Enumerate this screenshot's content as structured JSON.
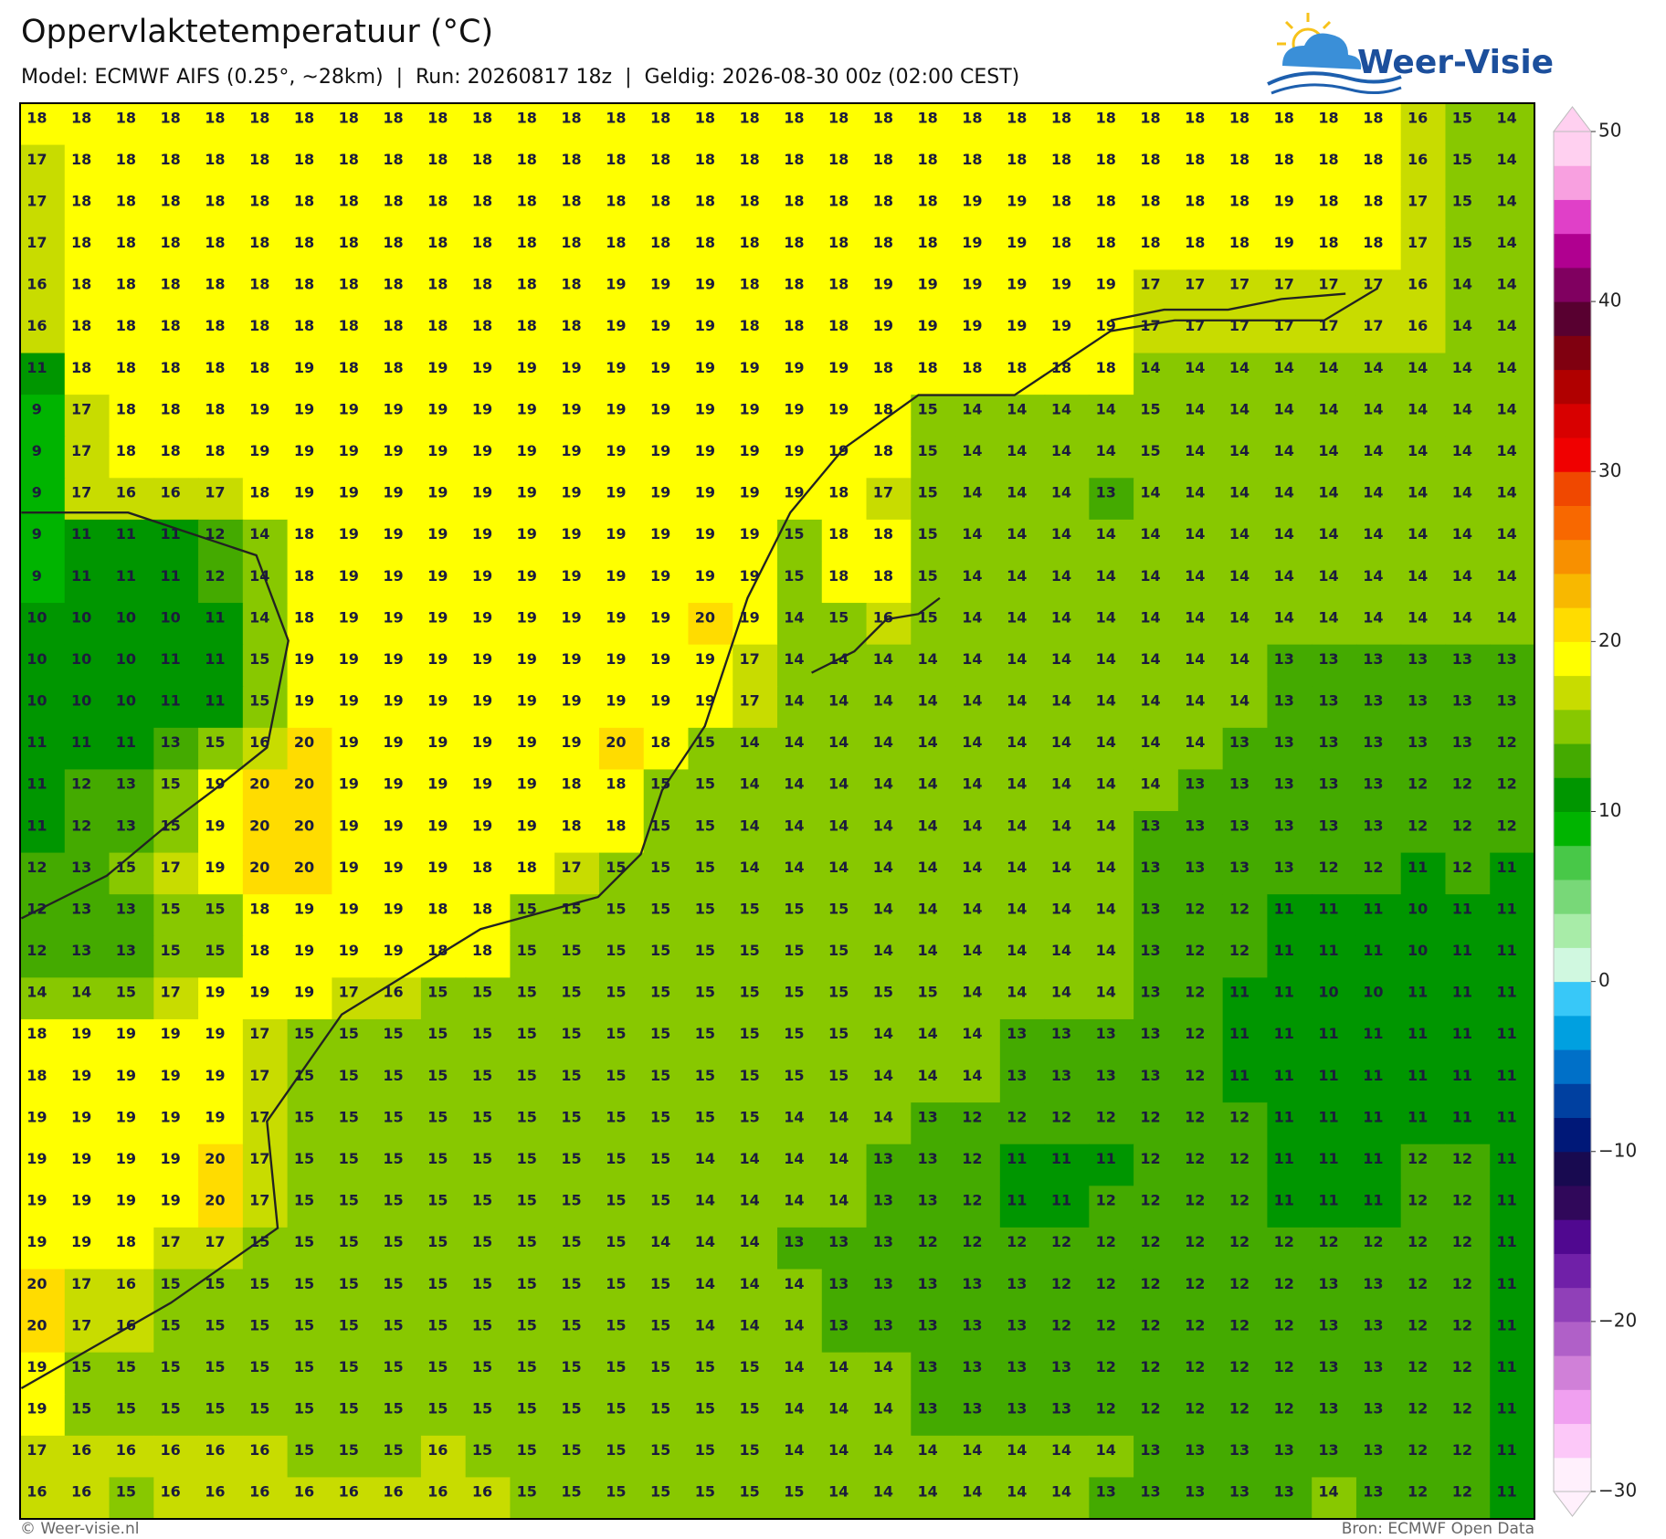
{
  "header": {
    "title": "Oppervlaktetemperatuur (°C)",
    "subtitle": "Model: ECMWF AIFS (0.25°, ~28km)  |  Run: 20260817 18z  |  Geldig: 2026-08-30 00z (02:00 CEST)"
  },
  "logo": {
    "text": "Weer-Visie"
  },
  "grid": {
    "rows": [
      [
        18,
        18,
        18,
        18,
        18,
        18,
        18,
        18,
        18,
        18,
        18,
        18,
        18,
        18,
        18,
        18,
        18,
        18,
        18,
        18,
        18,
        18,
        18,
        18,
        18,
        18,
        18,
        18,
        18,
        18,
        18,
        16,
        15,
        14
      ],
      [
        17,
        18,
        18,
        18,
        18,
        18,
        18,
        18,
        18,
        18,
        18,
        18,
        18,
        18,
        18,
        18,
        18,
        18,
        18,
        18,
        18,
        18,
        18,
        18,
        18,
        18,
        18,
        18,
        18,
        18,
        18,
        16,
        15,
        14
      ],
      [
        17,
        18,
        18,
        18,
        18,
        18,
        18,
        18,
        18,
        18,
        18,
        18,
        18,
        18,
        18,
        18,
        18,
        18,
        18,
        18,
        18,
        19,
        19,
        18,
        18,
        18,
        18,
        18,
        19,
        18,
        18,
        17,
        15,
        14
      ],
      [
        17,
        18,
        18,
        18,
        18,
        18,
        18,
        18,
        18,
        18,
        18,
        18,
        18,
        18,
        18,
        18,
        18,
        18,
        18,
        18,
        18,
        19,
        19,
        18,
        18,
        18,
        18,
        18,
        19,
        18,
        18,
        17,
        15,
        14
      ],
      [
        16,
        18,
        18,
        18,
        18,
        18,
        18,
        18,
        18,
        18,
        18,
        18,
        18,
        19,
        19,
        19,
        18,
        18,
        18,
        19,
        19,
        19,
        19,
        19,
        19,
        17,
        17,
        17,
        17,
        17,
        17,
        16,
        14,
        14
      ],
      [
        16,
        18,
        18,
        18,
        18,
        18,
        18,
        18,
        18,
        18,
        18,
        18,
        18,
        19,
        19,
        19,
        18,
        18,
        18,
        19,
        19,
        19,
        19,
        19,
        19,
        17,
        17,
        17,
        17,
        17,
        17,
        16,
        14,
        14
      ],
      [
        11,
        18,
        18,
        18,
        18,
        18,
        19,
        18,
        18,
        19,
        19,
        19,
        19,
        19,
        19,
        19,
        19,
        19,
        19,
        18,
        18,
        18,
        18,
        18,
        18,
        14,
        14,
        14,
        14,
        14,
        14,
        14,
        14,
        14
      ],
      [
        9,
        17,
        18,
        18,
        18,
        19,
        19,
        19,
        19,
        19,
        19,
        19,
        19,
        19,
        19,
        19,
        19,
        19,
        19,
        18,
        15,
        14,
        14,
        14,
        14,
        15,
        14,
        14,
        14,
        14,
        14,
        14,
        14,
        14
      ],
      [
        9,
        17,
        18,
        18,
        18,
        19,
        19,
        19,
        19,
        19,
        19,
        19,
        19,
        19,
        19,
        19,
        19,
        19,
        19,
        18,
        15,
        14,
        14,
        14,
        14,
        15,
        14,
        14,
        14,
        14,
        14,
        14,
        14,
        14
      ],
      [
        9,
        17,
        16,
        16,
        17,
        18,
        19,
        19,
        19,
        19,
        19,
        19,
        19,
        19,
        19,
        19,
        19,
        19,
        18,
        17,
        15,
        14,
        14,
        14,
        13,
        14,
        14,
        14,
        14,
        14,
        14,
        14,
        14,
        14
      ],
      [
        9,
        11,
        11,
        11,
        12,
        14,
        18,
        19,
        19,
        19,
        19,
        19,
        19,
        19,
        19,
        19,
        19,
        15,
        18,
        18,
        15,
        14,
        14,
        14,
        14,
        14,
        14,
        14,
        14,
        14,
        14,
        14,
        14,
        14
      ],
      [
        9,
        11,
        11,
        11,
        12,
        14,
        18,
        19,
        19,
        19,
        19,
        19,
        19,
        19,
        19,
        19,
        19,
        15,
        18,
        18,
        15,
        14,
        14,
        14,
        14,
        14,
        14,
        14,
        14,
        14,
        14,
        14,
        14,
        14
      ],
      [
        10,
        10,
        10,
        10,
        11,
        14,
        18,
        19,
        19,
        19,
        19,
        19,
        19,
        19,
        19,
        20,
        19,
        14,
        15,
        16,
        15,
        14,
        14,
        14,
        14,
        14,
        14,
        14,
        14,
        14,
        14,
        14,
        14,
        14
      ],
      [
        10,
        10,
        10,
        11,
        11,
        15,
        19,
        19,
        19,
        19,
        19,
        19,
        19,
        19,
        19,
        19,
        17,
        14,
        14,
        14,
        14,
        14,
        14,
        14,
        14,
        14,
        14,
        14,
        13,
        13,
        13,
        13,
        13,
        13
      ],
      [
        10,
        10,
        10,
        11,
        11,
        15,
        19,
        19,
        19,
        19,
        19,
        19,
        19,
        19,
        19,
        19,
        17,
        14,
        14,
        14,
        14,
        14,
        14,
        14,
        14,
        14,
        14,
        14,
        13,
        13,
        13,
        13,
        13,
        13
      ],
      [
        11,
        11,
        11,
        13,
        15,
        16,
        20,
        19,
        19,
        19,
        19,
        19,
        19,
        20,
        18,
        15,
        14,
        14,
        14,
        14,
        14,
        14,
        14,
        14,
        14,
        14,
        14,
        13,
        13,
        13,
        13,
        13,
        13,
        12
      ],
      [
        11,
        12,
        13,
        15,
        19,
        20,
        20,
        19,
        19,
        19,
        19,
        19,
        18,
        18,
        15,
        15,
        14,
        14,
        14,
        14,
        14,
        14,
        14,
        14,
        14,
        14,
        13,
        13,
        13,
        13,
        13,
        12,
        12,
        12
      ],
      [
        11,
        12,
        13,
        15,
        19,
        20,
        20,
        19,
        19,
        19,
        19,
        19,
        18,
        18,
        15,
        15,
        14,
        14,
        14,
        14,
        14,
        14,
        14,
        14,
        14,
        13,
        13,
        13,
        13,
        13,
        13,
        12,
        12,
        12
      ],
      [
        12,
        13,
        15,
        17,
        19,
        20,
        20,
        19,
        19,
        19,
        18,
        18,
        17,
        15,
        15,
        15,
        14,
        14,
        14,
        14,
        14,
        14,
        14,
        14,
        14,
        13,
        13,
        13,
        13,
        12,
        12,
        11,
        12,
        11
      ],
      [
        12,
        13,
        13,
        15,
        15,
        18,
        19,
        19,
        19,
        18,
        18,
        15,
        15,
        15,
        15,
        15,
        15,
        15,
        15,
        14,
        14,
        14,
        14,
        14,
        14,
        13,
        12,
        12,
        11,
        11,
        11,
        10,
        11,
        11
      ],
      [
        12,
        13,
        13,
        15,
        15,
        18,
        19,
        19,
        19,
        18,
        18,
        15,
        15,
        15,
        15,
        15,
        15,
        15,
        15,
        14,
        14,
        14,
        14,
        14,
        14,
        13,
        12,
        12,
        11,
        11,
        11,
        10,
        11,
        11
      ],
      [
        14,
        14,
        15,
        17,
        19,
        19,
        19,
        17,
        16,
        15,
        15,
        15,
        15,
        15,
        15,
        15,
        15,
        15,
        15,
        15,
        15,
        14,
        14,
        14,
        14,
        13,
        12,
        11,
        11,
        10,
        10,
        11,
        11,
        11
      ],
      [
        18,
        19,
        19,
        19,
        19,
        17,
        15,
        15,
        15,
        15,
        15,
        15,
        15,
        15,
        15,
        15,
        15,
        15,
        15,
        14,
        14,
        14,
        13,
        13,
        13,
        13,
        12,
        11,
        11,
        11,
        11,
        11,
        11,
        11
      ],
      [
        18,
        19,
        19,
        19,
        19,
        17,
        15,
        15,
        15,
        15,
        15,
        15,
        15,
        15,
        15,
        15,
        15,
        15,
        15,
        14,
        14,
        14,
        13,
        13,
        13,
        13,
        12,
        11,
        11,
        11,
        11,
        11,
        11,
        11
      ],
      [
        19,
        19,
        19,
        19,
        19,
        17,
        15,
        15,
        15,
        15,
        15,
        15,
        15,
        15,
        15,
        15,
        15,
        14,
        14,
        14,
        13,
        12,
        12,
        12,
        12,
        12,
        12,
        12,
        11,
        11,
        11,
        11,
        11,
        11
      ],
      [
        19,
        19,
        19,
        19,
        20,
        17,
        15,
        15,
        15,
        15,
        15,
        15,
        15,
        15,
        15,
        14,
        14,
        14,
        14,
        13,
        13,
        12,
        11,
        11,
        11,
        12,
        12,
        12,
        11,
        11,
        11,
        12,
        12,
        11
      ],
      [
        19,
        19,
        19,
        19,
        20,
        17,
        15,
        15,
        15,
        15,
        15,
        15,
        15,
        15,
        15,
        14,
        14,
        14,
        14,
        13,
        13,
        12,
        11,
        11,
        12,
        12,
        12,
        12,
        11,
        11,
        11,
        12,
        12,
        11
      ],
      [
        19,
        19,
        18,
        17,
        17,
        15,
        15,
        15,
        15,
        15,
        15,
        15,
        15,
        15,
        14,
        14,
        14,
        13,
        13,
        13,
        12,
        12,
        12,
        12,
        12,
        12,
        12,
        12,
        12,
        12,
        12,
        12,
        12,
        11
      ],
      [
        20,
        17,
        16,
        15,
        15,
        15,
        15,
        15,
        15,
        15,
        15,
        15,
        15,
        15,
        15,
        14,
        14,
        14,
        13,
        13,
        13,
        13,
        13,
        12,
        12,
        12,
        12,
        12,
        12,
        13,
        13,
        12,
        12,
        11
      ],
      [
        20,
        17,
        16,
        15,
        15,
        15,
        15,
        15,
        15,
        15,
        15,
        15,
        15,
        15,
        15,
        14,
        14,
        14,
        13,
        13,
        13,
        13,
        13,
        12,
        12,
        12,
        12,
        12,
        12,
        13,
        13,
        12,
        12,
        11
      ],
      [
        19,
        15,
        15,
        15,
        15,
        15,
        15,
        15,
        15,
        15,
        15,
        15,
        15,
        15,
        15,
        15,
        15,
        14,
        14,
        14,
        13,
        13,
        13,
        13,
        12,
        12,
        12,
        12,
        12,
        13,
        13,
        12,
        12,
        11
      ],
      [
        19,
        15,
        15,
        15,
        15,
        15,
        15,
        15,
        15,
        15,
        15,
        15,
        15,
        15,
        15,
        15,
        15,
        14,
        14,
        14,
        13,
        13,
        13,
        13,
        12,
        12,
        12,
        12,
        12,
        13,
        13,
        12,
        12,
        11
      ],
      [
        17,
        16,
        16,
        16,
        16,
        16,
        15,
        15,
        15,
        16,
        15,
        15,
        15,
        15,
        15,
        15,
        15,
        14,
        14,
        14,
        14,
        14,
        14,
        14,
        14,
        13,
        13,
        13,
        13,
        13,
        13,
        12,
        12,
        11
      ],
      [
        16,
        16,
        15,
        16,
        16,
        16,
        16,
        16,
        16,
        16,
        16,
        15,
        15,
        15,
        15,
        15,
        15,
        15,
        14,
        14,
        14,
        14,
        14,
        14,
        13,
        13,
        13,
        13,
        13,
        14,
        13,
        12,
        12,
        11
      ]
    ]
  },
  "colorbar": {
    "lim": [
      -30,
      50
    ],
    "ticks": [
      {
        "value": -30,
        "label": "−30"
      },
      {
        "value": -20,
        "label": "−20"
      },
      {
        "value": -10,
        "label": "−10"
      },
      0,
      10,
      20,
      30,
      40,
      50
    ],
    "colors": [
      "#fff0fc",
      "#fcc8f8",
      "#f0a0f0",
      "#d080d8",
      "#b060c8",
      "#9040b8",
      "#7020a8",
      "#500890",
      "#30085a",
      "#180a50",
      "#001878",
      "#0040a0",
      "#0070c8",
      "#00a0e0",
      "#38c8f8",
      "#d0f8e0",
      "#a8eca8",
      "#78d878",
      "#48c848",
      "#00b400",
      "#009600",
      "#44aa00",
      "#88c800",
      "#c8dc00",
      "#ffff00",
      "#ffdc00",
      "#f8b800",
      "#f89000",
      "#f86800",
      "#f04800",
      "#f00000",
      "#d80000",
      "#b00000",
      "#800010",
      "#580030",
      "#800060",
      "#b00090",
      "#e040c8",
      "#f8a0e0",
      "#ffd0f0"
    ]
  },
  "footer": {
    "left": "© Weer-visie.nl",
    "right": "Bron: ECMWF Open Data"
  }
}
